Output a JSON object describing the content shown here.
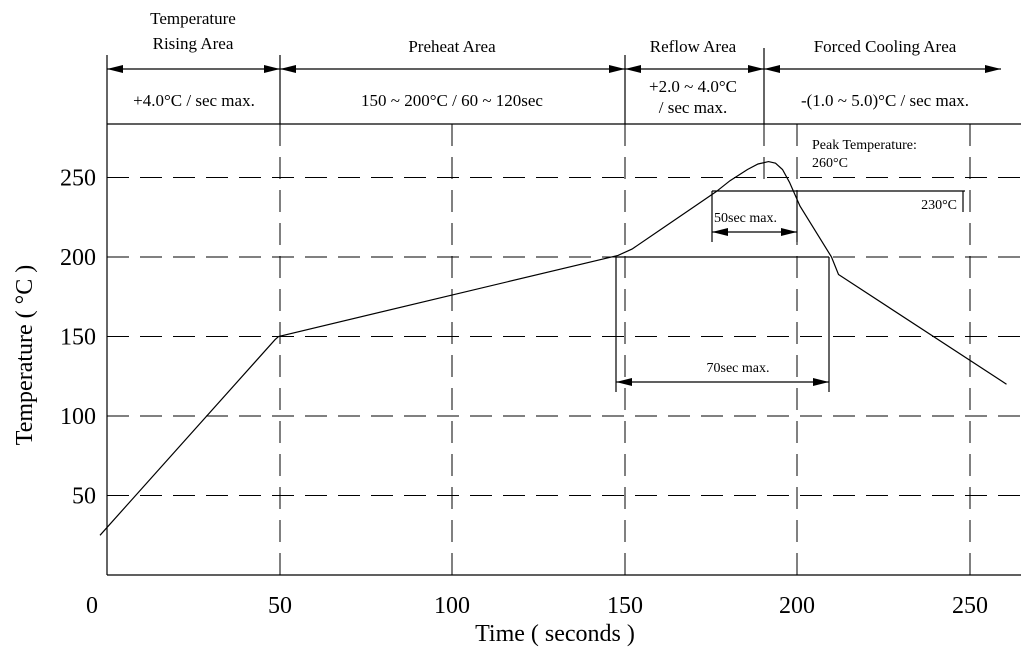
{
  "chart_data": {
    "type": "line",
    "xlabel": "Time ( seconds )",
    "ylabel": "Temperature ( °C )",
    "xlim": [
      0,
      260
    ],
    "ylim": [
      0,
      285
    ],
    "x_ticks": [
      0,
      50,
      100,
      150,
      200,
      250
    ],
    "y_ticks": [
      50,
      100,
      150,
      200,
      250
    ],
    "grid": true,
    "series": [
      {
        "points": [
          [
            0,
            25
          ],
          [
            50,
            148
          ],
          [
            51,
            150
          ],
          [
            148,
            201
          ],
          [
            152,
            205
          ],
          [
            160,
            217
          ],
          [
            170,
            232
          ],
          [
            176,
            241
          ],
          [
            180,
            248
          ],
          [
            185,
            255
          ],
          [
            188,
            258.5
          ],
          [
            191,
            260
          ],
          [
            193,
            259
          ],
          [
            195,
            255
          ],
          [
            197,
            247
          ],
          [
            200,
            232
          ],
          [
            209,
            200
          ],
          [
            211,
            189
          ],
          [
            259,
            120
          ]
        ]
      }
    ],
    "zones": [
      {
        "title": "Temperature\nRising Area",
        "desc": "+4.0°C / sec max.",
        "from": 0,
        "to": 50
      },
      {
        "title": "Preheat Area",
        "desc": "150 ~ 200°C / 60 ~ 120sec",
        "from": 50,
        "to": 150
      },
      {
        "title": "Reflow Area",
        "desc": "+2.0 ~ 4.0°C\n/ sec max.",
        "from": 150,
        "to": 190
      },
      {
        "title": "Forced Cooling Area",
        "desc": "-(1.0 ~ 5.0)°C / sec max.",
        "from": 190,
        "to": 260
      }
    ],
    "annotations": {
      "peak": "Peak Temperature:\n260°C",
      "t230": "230°C",
      "sec50": "50sec max.",
      "sec70": "70sec max."
    }
  }
}
